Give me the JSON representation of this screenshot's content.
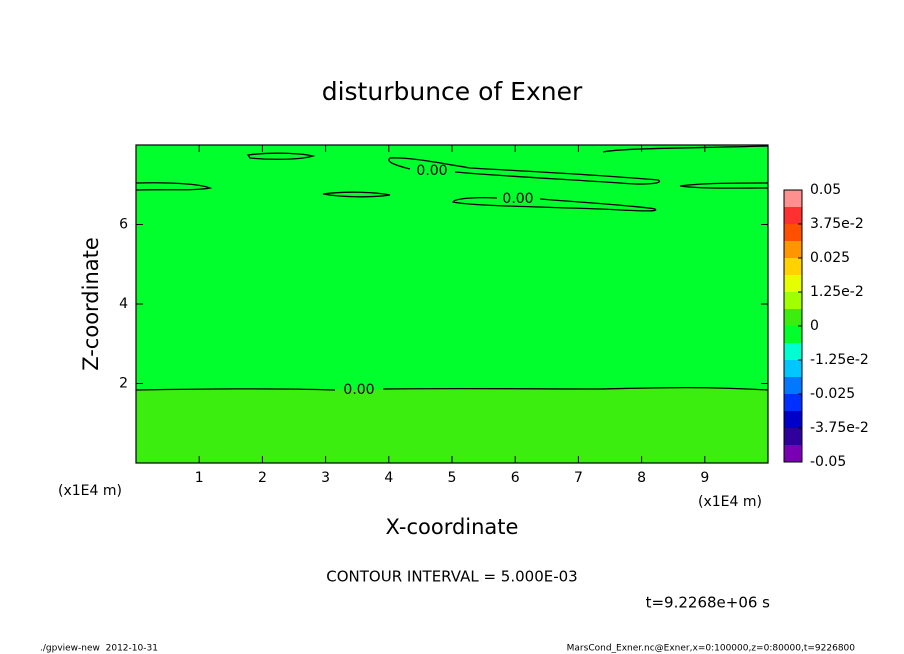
{
  "chart_data": {
    "type": "contour",
    "title": "disturbunce of Exner",
    "x_label": "X-coordinate",
    "y_label": "Z-coordinate",
    "x_unit": "(x1E4 m)",
    "y_unit": "(x1E4 m)",
    "xlim": [
      0,
      10
    ],
    "ylim": [
      0,
      8
    ],
    "xticks": [
      1,
      2,
      3,
      4,
      5,
      6,
      7,
      8,
      9
    ],
    "yticks": [
      2,
      4,
      6
    ],
    "contour_labels": [
      "0.00",
      "0.00",
      "0.00"
    ],
    "colorbar": {
      "lim": [
        -0.05,
        0.05
      ],
      "levels": [
        -0.05,
        -0.04375,
        -0.0375,
        -0.03125,
        -0.025,
        -0.01875,
        -0.0125,
        -0.00625,
        0,
        0.00625,
        0.0125,
        0.01875,
        0.025,
        0.03125,
        0.0375,
        0.04375,
        0.05
      ],
      "colors": [
        "#7a00b4",
        "#30009c",
        "#0000c8",
        "#0030ff",
        "#0078ff",
        "#00c8ff",
        "#00ffd0",
        "#00ff2c",
        "#3cee10",
        "#a0ff00",
        "#e6ff00",
        "#ffd200",
        "#ff9600",
        "#ff5000",
        "#ff3030",
        "#ff9090"
      ],
      "ticks": [
        0.05,
        {
          "value": 0.0375,
          "label": "3.75e-2"
        },
        0.025,
        {
          "value": 0.0125,
          "label": "1.25e-2"
        },
        0,
        {
          "value": -0.0125,
          "label": "-1.25e-2"
        },
        -0.025,
        {
          "value": -0.0375,
          "label": "-3.75e-2"
        },
        -0.05
      ]
    },
    "contour_interval": "CONTOUR INTERVAL = 5.000E-03",
    "time": "t=9.2268e+06 s"
  },
  "footer": {
    "left": "./gpview-new  2012-10-31",
    "right": "MarsCond_Exner.nc@Exner,x=0:100000,z=0:80000,t=9226800"
  }
}
